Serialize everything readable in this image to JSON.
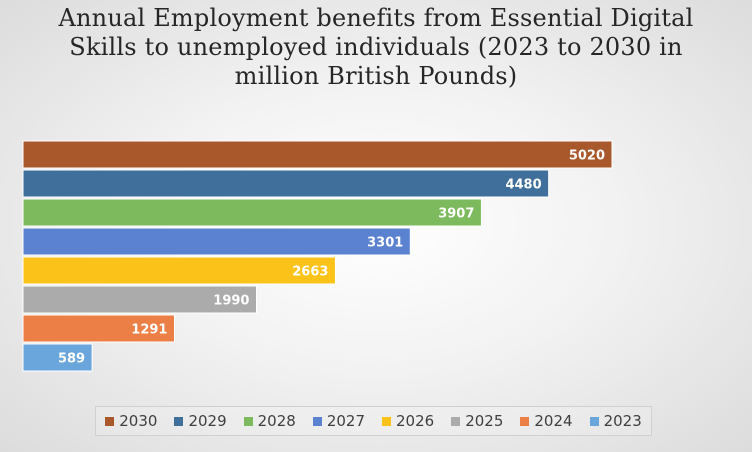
{
  "chart_data": {
    "type": "bar",
    "orientation": "horizontal",
    "title": "Annual Employment benefits from Essential Digital Skills to unemployed individuals (2023 to 2030 in million British Pounds)",
    "categories": [
      "2030",
      "2029",
      "2028",
      "2027",
      "2026",
      "2025",
      "2024",
      "2023"
    ],
    "values": [
      5020,
      4480,
      3907,
      3301,
      2663,
      1990,
      1291,
      589
    ],
    "value_labels": [
      "5020",
      "4480",
      "3907",
      "3301",
      "2663",
      "1990",
      "1291",
      "589"
    ],
    "colors": [
      "#a9582b",
      "#3f6f9a",
      "#7cba5d",
      "#5b82d0",
      "#fbc31a",
      "#ababab",
      "#ec7f45",
      "#6aa6db"
    ],
    "legend": [
      {
        "label": "2030",
        "color": "#a9582b"
      },
      {
        "label": "2029",
        "color": "#3f6f9a"
      },
      {
        "label": "2028",
        "color": "#7cba5d"
      },
      {
        "label": "2027",
        "color": "#5b82d0"
      },
      {
        "label": "2026",
        "color": "#fbc31a"
      },
      {
        "label": "2025",
        "color": "#ababab"
      },
      {
        "label": "2024",
        "color": "#ec7f45"
      },
      {
        "label": "2023",
        "color": "#6aa6db"
      }
    ],
    "legend_position": "bottom",
    "grid": false,
    "xlim": [
      0,
      6000
    ]
  }
}
